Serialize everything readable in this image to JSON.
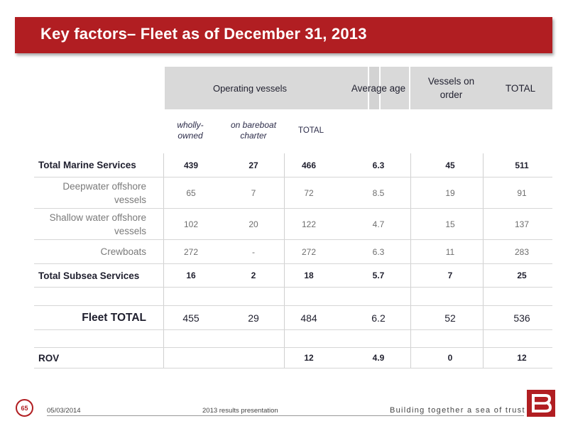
{
  "title": "Key factors– Fleet as of December 31, 2013",
  "header": {
    "operating_vessels": "Operating vessels",
    "average_age": "Average age",
    "vessels_on_order": "Vessels on order",
    "total": "TOTAL"
  },
  "subheader": {
    "wholly_owned": "wholly-owned",
    "bareboat": "on bareboat charter",
    "total": "TOTAL"
  },
  "rows": [
    {
      "label": "Total Marine Services",
      "owned": "439",
      "bareboat": "27",
      "op_total": "466",
      "age": "6.3",
      "order": "45",
      "total": "511"
    },
    {
      "label": "Deepwater offshore vessels",
      "owned": "65",
      "bareboat": "7",
      "op_total": "72",
      "age": "8.5",
      "order": "19",
      "total": "91"
    },
    {
      "label": "Shallow water offshore vessels",
      "owned": "102",
      "bareboat": "20",
      "op_total": "122",
      "age": "4.7",
      "order": "15",
      "total": "137"
    },
    {
      "label": "Crewboats",
      "owned": "272",
      "bareboat": "-",
      "op_total": "272",
      "age": "6.3",
      "order": "11",
      "total": "283"
    },
    {
      "label": "Total Subsea Services",
      "owned": "16",
      "bareboat": "2",
      "op_total": "18",
      "age": "5.7",
      "order": "7",
      "total": "25"
    },
    {
      "label": "Fleet TOTAL",
      "owned": "455",
      "bareboat": "29",
      "op_total": "484",
      "age": "6.2",
      "order": "52",
      "total": "536"
    },
    {
      "label": "ROV",
      "owned": "",
      "bareboat": "",
      "op_total": "12",
      "age": "4.9",
      "order": "0",
      "total": "12"
    }
  ],
  "footer": {
    "page_number": "65",
    "date": "05/03/2014",
    "presentation": "2013 results presentation",
    "tagline": "Building together a sea of trust"
  },
  "colors": {
    "brand_red": "#b11e22",
    "header_grey": "#d9d9d9"
  }
}
